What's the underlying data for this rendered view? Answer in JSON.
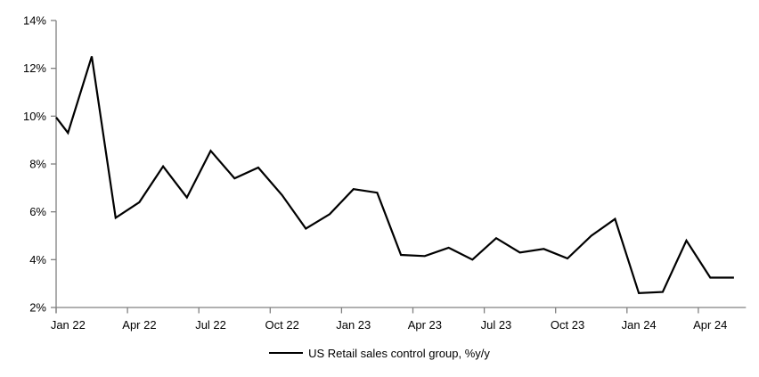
{
  "page": {
    "background": "#ffffff"
  },
  "legend": {
    "label": "US Retail sales control group, %y/y"
  },
  "chart_data": {
    "type": "line",
    "title": "",
    "xlabel": "",
    "ylabel": "",
    "grid": false,
    "legend_position": "bottom",
    "axis_color": "#808080",
    "text_color": "#000000",
    "line_color": "#000000",
    "y_axis": {
      "min": 2,
      "max": 14,
      "step": 2,
      "suffix": "%",
      "tick_labels": [
        "2%",
        "4%",
        "6%",
        "8%",
        "10%",
        "12%",
        "14%"
      ]
    },
    "x": [
      "Jan 22",
      "Feb 22",
      "Mar 22",
      "Apr 22",
      "May 22",
      "Jun 22",
      "Jul 22",
      "Aug 22",
      "Sep 22",
      "Oct 22",
      "Nov 22",
      "Dec 22",
      "Jan 23",
      "Feb 23",
      "Mar 23",
      "Apr 23",
      "May 23",
      "Jun 23",
      "Jul 23",
      "Aug 23",
      "Sep 23",
      "Oct 23",
      "Nov 23",
      "Dec 23",
      "Jan 24",
      "Feb 24",
      "Mar 24",
      "Apr 24",
      "May 24"
    ],
    "x_tick_labels": [
      "Jan 22",
      "Apr 22",
      "Jul 22",
      "Oct 22",
      "Jan 23",
      "Apr 23",
      "Jul 23",
      "Oct 23",
      "Jan 24",
      "Apr 24"
    ],
    "x_tick_every": 3,
    "series": [
      {
        "name": "US Retail sales control group, %y/y",
        "left_edge_value": 9.95,
        "values": [
          9.3,
          12.5,
          5.75,
          6.4,
          7.9,
          6.6,
          8.55,
          7.4,
          7.85,
          6.7,
          5.3,
          5.9,
          6.95,
          6.8,
          4.2,
          4.15,
          4.5,
          4.0,
          4.9,
          4.3,
          4.45,
          4.05,
          5.0,
          5.7,
          2.6,
          2.65,
          4.8,
          3.25,
          3.25
        ]
      }
    ]
  }
}
